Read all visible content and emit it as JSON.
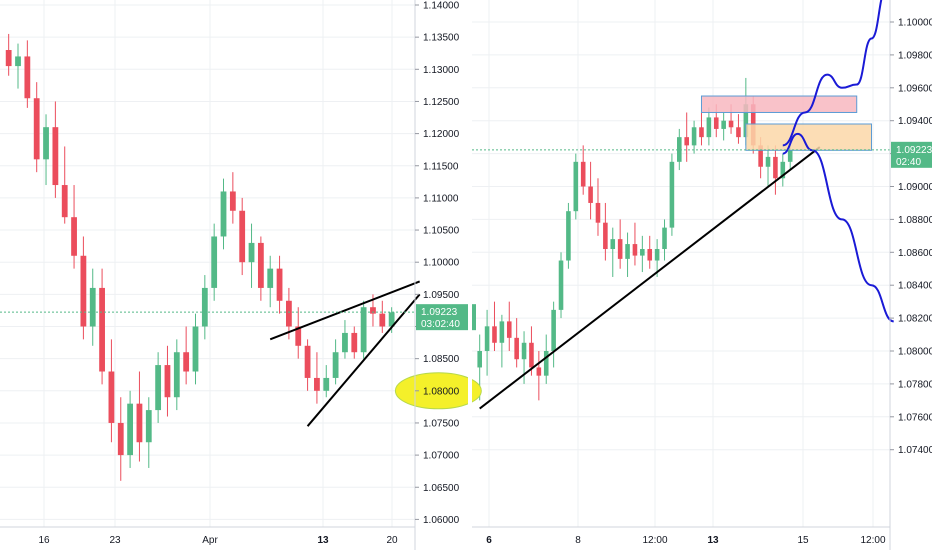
{
  "colors": {
    "up": "#53b987",
    "down": "#eb4d5c",
    "grid": "#eef0f3",
    "axis_text": "#131722",
    "price_line": "#53b987",
    "price_badge": "#53b987",
    "trendline": "#000000",
    "projection": "#1a1ad6",
    "resistance_zone": "#f8b7c0",
    "support_zone": "#fbd7a8",
    "marker": "#f4f02a"
  },
  "chart_data": [
    {
      "type": "candlestick",
      "title": "",
      "timeframe": "daily",
      "x_tick_labels": [
        "16",
        "23",
        "Apr",
        "13",
        "20"
      ],
      "y_tick_labels": [
        "1.14000",
        "1.13500",
        "1.13000",
        "1.12500",
        "1.12000",
        "1.11500",
        "1.11000",
        "1.10500",
        "1.10000",
        "1.09500",
        "1.09000",
        "1.08500",
        "1.08000",
        "1.07500",
        "1.07000",
        "1.06500",
        "1.06000"
      ],
      "ylim": [
        1.0595,
        1.1405
      ],
      "current_price": "1.09223",
      "countdown": "03:02:40",
      "grid": true,
      "candles": [
        [
          1.133,
          1.1355,
          1.129,
          1.1305
        ],
        [
          1.1305,
          1.134,
          1.127,
          1.132
        ],
        [
          1.132,
          1.1345,
          1.124,
          1.1255
        ],
        [
          1.1255,
          1.128,
          1.114,
          1.116
        ],
        [
          1.116,
          1.123,
          1.112,
          1.121
        ],
        [
          1.121,
          1.125,
          1.11,
          1.112
        ],
        [
          1.112,
          1.118,
          1.106,
          1.107
        ],
        [
          1.107,
          1.112,
          1.099,
          1.101
        ],
        [
          1.101,
          1.104,
          1.088,
          1.09
        ],
        [
          1.09,
          1.099,
          1.087,
          1.096
        ],
        [
          1.096,
          1.099,
          1.081,
          1.083
        ],
        [
          1.083,
          1.088,
          1.072,
          1.075
        ],
        [
          1.075,
          1.079,
          1.066,
          1.07
        ],
        [
          1.07,
          1.08,
          1.068,
          1.078
        ],
        [
          1.078,
          1.083,
          1.069,
          1.072
        ],
        [
          1.072,
          1.079,
          1.068,
          1.077
        ],
        [
          1.077,
          1.086,
          1.075,
          1.084
        ],
        [
          1.084,
          1.087,
          1.076,
          1.079
        ],
        [
          1.079,
          1.088,
          1.077,
          1.086
        ],
        [
          1.086,
          1.09,
          1.081,
          1.083
        ],
        [
          1.083,
          1.092,
          1.081,
          1.09
        ],
        [
          1.09,
          1.098,
          1.088,
          1.096
        ],
        [
          1.096,
          1.106,
          1.094,
          1.104
        ],
        [
          1.104,
          1.113,
          1.102,
          1.111
        ],
        [
          1.111,
          1.114,
          1.106,
          1.108
        ],
        [
          1.108,
          1.11,
          1.098,
          1.1
        ],
        [
          1.1,
          1.106,
          1.096,
          1.103
        ],
        [
          1.103,
          1.104,
          1.094,
          1.096
        ],
        [
          1.096,
          1.101,
          1.093,
          1.099
        ],
        [
          1.099,
          1.101,
          1.092,
          1.094
        ],
        [
          1.094,
          1.096,
          1.088,
          1.09
        ],
        [
          1.09,
          1.093,
          1.085,
          1.087
        ],
        [
          1.087,
          1.088,
          1.08,
          1.082
        ],
        [
          1.082,
          1.086,
          1.078,
          1.08
        ],
        [
          1.08,
          1.084,
          1.079,
          1.082
        ],
        [
          1.082,
          1.088,
          1.081,
          1.086
        ],
        [
          1.086,
          1.091,
          1.085,
          1.089
        ],
        [
          1.089,
          1.09,
          1.085,
          1.086
        ],
        [
          1.086,
          1.094,
          1.085,
          1.093
        ],
        [
          1.093,
          1.095,
          1.09,
          1.092
        ],
        [
          1.092,
          1.094,
          1.089,
          1.09
        ],
        [
          1.09,
          1.093,
          1.089,
          1.0922
        ]
      ],
      "annotations": [
        {
          "type": "trendline",
          "label": "rising wedge upper",
          "from": [
            28,
            1.088
          ],
          "to": [
            44,
            1.097
          ]
        },
        {
          "type": "trendline",
          "label": "rising wedge lower",
          "from": [
            32,
            1.0745
          ],
          "to": [
            44,
            1.095
          ]
        },
        {
          "type": "ellipse",
          "label": "marker",
          "center": [
            46,
            1.08
          ],
          "radius": [
            2.3,
            0.0028
          ]
        }
      ]
    },
    {
      "type": "candlestick",
      "title": "",
      "timeframe": "intraday",
      "x_tick_labels": [
        "6",
        "8",
        "12:00",
        "13",
        "15",
        "12:00"
      ],
      "y_tick_labels": [
        "1.10000",
        "1.09800",
        "1.09600",
        "1.09400",
        "1.09200",
        "1.09000",
        "1.08800",
        "1.08600",
        "1.08400",
        "1.08200",
        "1.08000",
        "1.07800",
        "1.07600",
        "1.07400"
      ],
      "ylim": [
        1.073,
        1.102
      ],
      "current_price": "1.09223",
      "countdown": "02:40",
      "grid": true,
      "candles": [
        [
          1.079,
          1.081,
          1.077,
          1.08
        ],
        [
          1.08,
          1.0825,
          1.0785,
          1.0815
        ],
        [
          1.0815,
          1.083,
          1.08,
          1.0805
        ],
        [
          1.0805,
          1.0822,
          1.079,
          1.0818
        ],
        [
          1.0818,
          1.083,
          1.08,
          1.0808
        ],
        [
          1.0808,
          1.082,
          1.079,
          1.0795
        ],
        [
          1.0795,
          1.0812,
          1.078,
          1.0805
        ],
        [
          1.0805,
          1.0815,
          1.0785,
          1.079
        ],
        [
          1.079,
          1.08,
          1.077,
          1.0785
        ],
        [
          1.0785,
          1.081,
          1.078,
          1.08
        ],
        [
          1.08,
          1.083,
          1.079,
          1.0825
        ],
        [
          1.0825,
          1.086,
          1.082,
          1.0855
        ],
        [
          1.0855,
          1.089,
          1.085,
          1.0885
        ],
        [
          1.0885,
          1.092,
          1.088,
          1.0915
        ],
        [
          1.0915,
          1.0925,
          1.0895,
          1.09
        ],
        [
          1.09,
          1.0915,
          1.088,
          1.089
        ],
        [
          1.089,
          1.0905,
          1.087,
          1.0878
        ],
        [
          1.0878,
          1.089,
          1.0855,
          1.0862
        ],
        [
          1.0862,
          1.0875,
          1.0845,
          1.0868
        ],
        [
          1.0868,
          1.088,
          1.085,
          1.0856
        ],
        [
          1.0856,
          1.0872,
          1.0845,
          1.0865
        ],
        [
          1.0865,
          1.0878,
          1.0852,
          1.0858
        ],
        [
          1.0858,
          1.087,
          1.0848,
          1.0862
        ],
        [
          1.0862,
          1.087,
          1.085,
          1.0855
        ],
        [
          1.0855,
          1.0868,
          1.0845,
          1.0862
        ],
        [
          1.0862,
          1.088,
          1.0855,
          1.0875
        ],
        [
          1.0875,
          1.092,
          1.087,
          1.0915
        ],
        [
          1.0915,
          1.0935,
          1.091,
          1.093
        ],
        [
          1.093,
          1.0945,
          1.0915,
          1.0925
        ],
        [
          1.0925,
          1.094,
          1.092,
          1.0936
        ],
        [
          1.0936,
          1.0945,
          1.0925,
          1.093
        ],
        [
          1.093,
          1.0948,
          1.0925,
          1.0942
        ],
        [
          1.0942,
          1.095,
          1.093,
          1.0935
        ],
        [
          1.0935,
          1.0945,
          1.0928,
          1.094
        ],
        [
          1.094,
          1.095,
          1.0932,
          1.0936
        ],
        [
          1.0936,
          1.0944,
          1.0926,
          1.093
        ],
        [
          1.093,
          1.0966,
          1.0925,
          1.095
        ],
        [
          1.095,
          1.0955,
          1.092,
          1.0925
        ],
        [
          1.0925,
          1.093,
          1.0905,
          1.0912
        ],
        [
          1.0912,
          1.0925,
          1.09,
          1.0918
        ],
        [
          1.0918,
          1.0925,
          1.0895,
          1.0905
        ],
        [
          1.0905,
          1.092,
          1.09,
          1.0915
        ],
        [
          1.0915,
          1.0928,
          1.091,
          1.0922
        ]
      ],
      "annotations": [
        {
          "type": "trendline",
          "label": "support trendline",
          "from": [
            0,
            1.0765
          ],
          "to": [
            46,
            1.0924
          ]
        },
        {
          "type": "zone",
          "label": "resistance zone",
          "x": [
            30,
            51
          ],
          "y": [
            1.0945,
            1.0955
          ]
        },
        {
          "type": "zone",
          "label": "support zone",
          "x": [
            36,
            53
          ],
          "y": [
            1.0922,
            1.0938
          ]
        },
        {
          "type": "projection",
          "label": "bullish path",
          "points": [
            [
              41,
              1.0925
            ],
            [
              44,
              1.0945
            ],
            [
              47,
              1.0968
            ],
            [
              49,
              1.096
            ],
            [
              51,
              1.0962
            ],
            [
              53,
              1.099
            ],
            [
              55,
              1.102
            ]
          ]
        },
        {
          "type": "projection",
          "label": "bearish path",
          "points": [
            [
              41,
              1.092
            ],
            [
              43,
              1.0932
            ],
            [
              45,
              1.0922
            ],
            [
              49,
              1.088
            ],
            [
              53,
              1.084
            ],
            [
              56,
              1.0818
            ]
          ]
        }
      ]
    }
  ]
}
